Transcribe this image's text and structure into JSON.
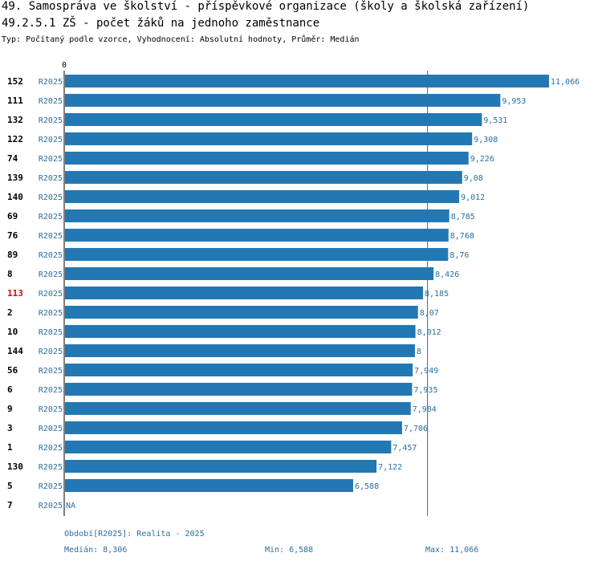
{
  "header": {
    "title": "49. Samospráva ve školství - příspěvkové organizace (školy a školská zařízení)",
    "subtitle": "49.2.5.1 ZŠ - počet žáků na jednoho zaměstnance",
    "typ": "Typ: Počítaný podle vzorce, Vyhodnocení: Absolutní hodnoty, Průměr: Medián"
  },
  "colors": {
    "bar": "#2378b4",
    "series_label": "#2b6f9e",
    "value_label": "#2b6f9e",
    "highlight": "#e00000",
    "axis": "#000000",
    "median_line": "#2b6f9e"
  },
  "chart_data": {
    "type": "bar",
    "orientation": "horizontal",
    "axis_zero_label": "0",
    "xlim": [
      0,
      11.066
    ],
    "median": 8.306,
    "categories": [
      "152",
      "111",
      "132",
      "122",
      "74",
      "139",
      "140",
      "69",
      "76",
      "89",
      "8",
      "113",
      "2",
      "10",
      "144",
      "56",
      "6",
      "9",
      "3",
      "1",
      "130",
      "5",
      "7"
    ],
    "series_label": "R2025",
    "values": [
      11.066,
      9.953,
      9.531,
      9.308,
      9.226,
      9.08,
      9.012,
      8.785,
      8.768,
      8.76,
      8.426,
      8.185,
      8.07,
      8.012,
      8,
      7.949,
      7.935,
      7.904,
      7.706,
      7.457,
      7.122,
      6.588,
      null
    ],
    "value_labels": [
      "11,066",
      "9,953",
      "9,531",
      "9,308",
      "9,226",
      "9,08",
      "9,012",
      "8,785",
      "8,768",
      "8,76",
      "8,426",
      "8,185",
      "8,07",
      "8,012",
      "8",
      "7,949",
      "7,935",
      "7,904",
      "7,706",
      "7,457",
      "7,122",
      "6,588",
      "NA"
    ],
    "highlight_category": "113"
  },
  "footer": {
    "period": "Období[R2025]: Realita - 2025",
    "median": "Medián: 8,306",
    "min": "Min: 6,588",
    "max": "Max: 11,066"
  }
}
